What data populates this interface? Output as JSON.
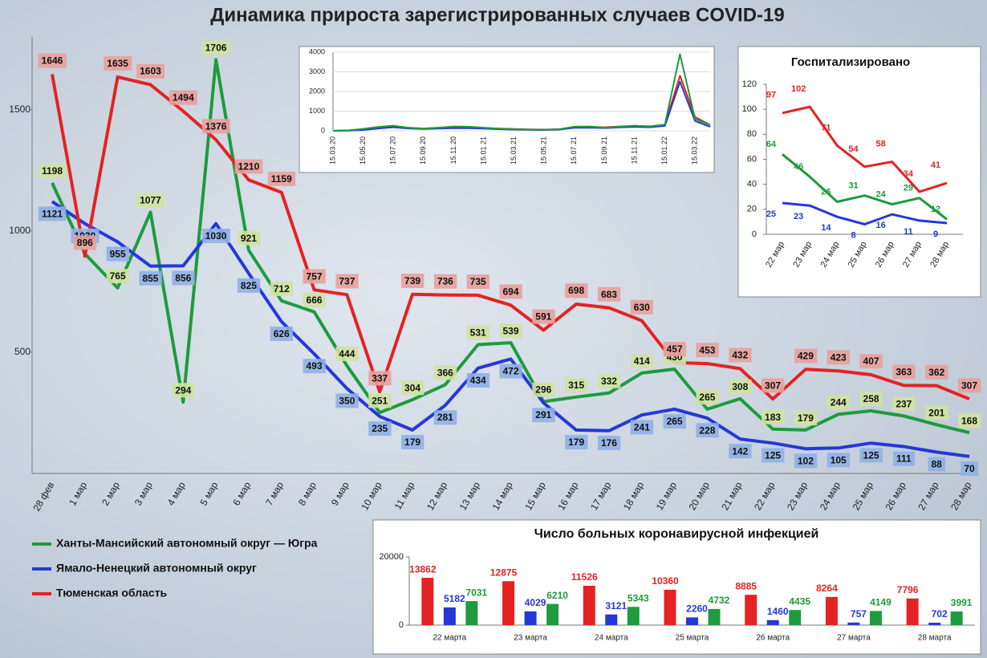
{
  "chart_data": [
    {
      "type": "line",
      "title": "Динамика прироста зарегистрированных случаев COVID-19",
      "categories": [
        "28 фев",
        "1 мар",
        "2 мар",
        "3 мар",
        "4 мар",
        "5 мар",
        "6 мар",
        "7 мар",
        "8 мар",
        "9 мар",
        "10 мар",
        "11 мар",
        "12 мар",
        "13 мар",
        "14 мар",
        "15 мар",
        "16 мар",
        "17 мар",
        "18 мар",
        "19 мар",
        "20 мар",
        "21 мар",
        "22 мар",
        "23 мар",
        "24 мар",
        "25 мар",
        "26 мар",
        "27 мар",
        "28 мар"
      ],
      "ylim": [
        0,
        1800
      ],
      "yticks": [
        500,
        1000,
        1500
      ],
      "legend": "bottom-left",
      "series": [
        {
          "name": "Ханты-Мансийский автономный округ — Югра",
          "color": "#1e9b3c",
          "values": [
            1198,
            906,
            765,
            1077,
            294,
            1706,
            921,
            712,
            666,
            444,
            251,
            304,
            366,
            531,
            539,
            296,
            315,
            332,
            414,
            430,
            265,
            308,
            183,
            179,
            244,
            258,
            237,
            201,
            168
          ]
        },
        {
          "name": "Ямало-Ненецкий автономный округ",
          "color": "#2438d8",
          "values": [
            1121,
            1030,
            955,
            855,
            856,
            1030,
            825,
            626,
            493,
            350,
            235,
            179,
            281,
            434,
            472,
            291,
            179,
            176,
            241,
            265,
            228,
            142,
            125,
            102,
            105,
            125,
            111,
            88,
            70
          ]
        },
        {
          "name": "Тюменская область",
          "color": "#e52222",
          "values": [
            1646,
            896,
            1635,
            1603,
            1494,
            1376,
            1210,
            1159,
            757,
            737,
            337,
            739,
            736,
            735,
            694,
            591,
            698,
            683,
            630,
            457,
            453,
            432,
            307,
            429,
            423,
            407,
            363,
            362,
            307
          ]
        }
      ]
    },
    {
      "type": "line",
      "categories": [
        "15.03.20",
        null,
        "15.05.20",
        null,
        "15.07.20",
        null,
        "15.09.20",
        null,
        "15.11.20",
        null,
        "15.01.21",
        null,
        "15.03.21",
        null,
        "15.05.21",
        null,
        "15.07.21",
        null,
        "15.09.21",
        null,
        "15.11.21",
        null,
        "15.01.22",
        null,
        "15.03.22",
        null
      ],
      "ylim": [
        0,
        4000
      ],
      "yticks": [
        0,
        1000,
        2000,
        3000,
        4000
      ],
      "series": [
        {
          "color": "#e52222",
          "values": [
            0,
            20,
            60,
            150,
            200,
            150,
            120,
            150,
            180,
            170,
            140,
            110,
            90,
            70,
            60,
            80,
            180,
            200,
            180,
            220,
            250,
            230,
            300,
            2800,
            700,
            300
          ]
        },
        {
          "color": "#2438d8",
          "values": [
            0,
            10,
            40,
            120,
            180,
            120,
            90,
            110,
            140,
            130,
            110,
            80,
            60,
            50,
            40,
            60,
            150,
            160,
            140,
            170,
            200,
            180,
            250,
            2500,
            500,
            200
          ]
        },
        {
          "color": "#1e9b3c",
          "values": [
            0,
            20,
            100,
            200,
            260,
            160,
            110,
            160,
            220,
            210,
            160,
            110,
            80,
            60,
            50,
            80,
            210,
            220,
            160,
            210,
            260,
            220,
            320,
            3900,
            600,
            300
          ]
        }
      ]
    },
    {
      "type": "line",
      "title": "Госпитализировано",
      "categories": [
        "22 мар",
        "23 мар",
        "24 мар",
        "25 мар",
        "26 мар",
        "27 мар",
        "28 мар"
      ],
      "ylim": [
        0,
        120
      ],
      "yticks": [
        0,
        20,
        40,
        60,
        80,
        100,
        120
      ],
      "series": [
        {
          "color": "#e52222",
          "values": [
            97,
            102,
            71,
            54,
            58,
            34,
            41
          ]
        },
        {
          "color": "#1e9b3c",
          "values": [
            64,
            46,
            26,
            31,
            24,
            29,
            12
          ]
        },
        {
          "color": "#2438d8",
          "values": [
            25,
            23,
            14,
            8,
            16,
            11,
            9
          ]
        }
      ]
    },
    {
      "type": "bar",
      "title": "Число больных коронавирусной  инфекцией",
      "categories": [
        "22 марта",
        "23 марта",
        "24 марта",
        "25 марта",
        "26 марта",
        "27 марта",
        "28 марта"
      ],
      "ylim": [
        0,
        20000
      ],
      "yticks": [
        0,
        20000
      ],
      "series": [
        {
          "color": "#e52222",
          "values": [
            13862,
            12875,
            11526,
            10360,
            8885,
            8264,
            7796
          ]
        },
        {
          "color": "#2438d8",
          "values": [
            5182,
            4029,
            3121,
            2260,
            1460,
            757,
            702
          ]
        },
        {
          "color": "#1e9b3c",
          "values": [
            7031,
            6210,
            5343,
            4732,
            4435,
            4149,
            3991
          ]
        }
      ]
    }
  ]
}
